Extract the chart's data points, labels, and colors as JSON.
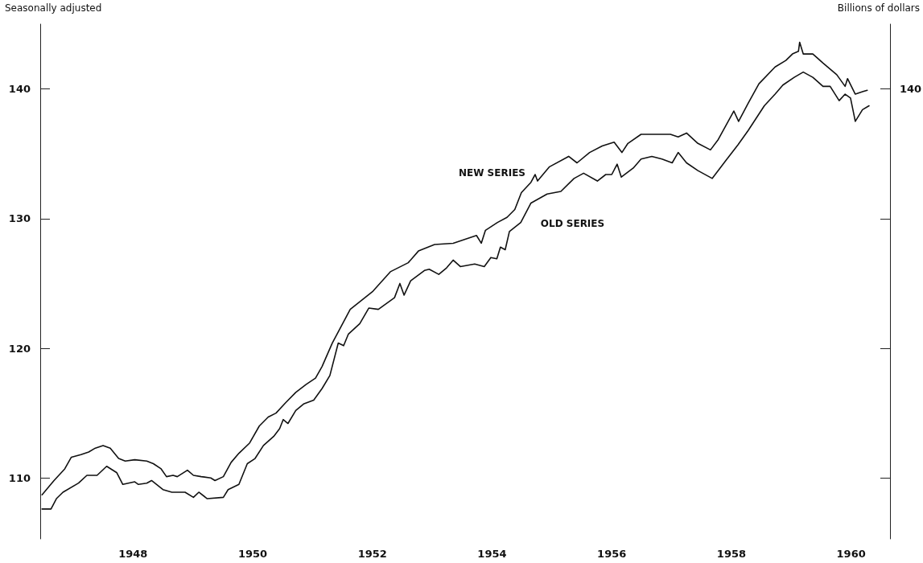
{
  "chart_data": {
    "type": "line",
    "subtitle": "Seasonally adjusted",
    "ylabel": "Billions of dollars",
    "xlim": [
      1946.45,
      1960.65
    ],
    "xticks": [
      1948,
      1950,
      1952,
      1954,
      1956,
      1958,
      1960
    ],
    "ylim": [
      105.3,
      145
    ],
    "yticks": [
      110,
      120,
      130,
      140
    ],
    "grid": false,
    "marker": "none",
    "line_style": "solid",
    "annotations": [
      "140"
    ],
    "series": [
      {
        "name": "NEW SERIES",
        "color": "#111111",
        "x": [
          1946.48,
          1946.68,
          1946.86,
          1946.97,
          1947.13,
          1947.26,
          1947.37,
          1947.5,
          1947.62,
          1947.76,
          1947.87,
          1948.03,
          1948.23,
          1948.34,
          1948.47,
          1948.56,
          1948.67,
          1948.74,
          1948.91,
          1949.01,
          1949.14,
          1949.3,
          1949.37,
          1949.51,
          1949.64,
          1949.77,
          1949.95,
          1950.11,
          1950.26,
          1950.39,
          1950.55,
          1950.72,
          1950.89,
          1951.05,
          1951.16,
          1951.33,
          1951.63,
          1952.01,
          1952.3,
          1952.6,
          1952.77,
          1953.04,
          1953.35,
          1953.74,
          1953.82,
          1953.89,
          1954.09,
          1954.25,
          1954.38,
          1954.49,
          1954.65,
          1954.72,
          1954.76,
          1954.96,
          1955.28,
          1955.42,
          1955.63,
          1955.84,
          1956.04,
          1956.17,
          1956.27,
          1956.49,
          1956.76,
          1956.98,
          1957.11,
          1957.25,
          1957.44,
          1957.65,
          1957.78,
          1958.04,
          1958.12,
          1958.28,
          1958.46,
          1958.73,
          1958.91,
          1959.02,
          1959.12,
          1959.14,
          1959.2,
          1959.36,
          1959.53,
          1959.76,
          1959.9,
          1959.94,
          1960.07,
          1960.2,
          1960.27
        ],
        "values": [
          108.7,
          109.8,
          110.7,
          111.6,
          111.8,
          112.0,
          112.3,
          112.5,
          112.3,
          111.5,
          111.3,
          111.4,
          111.3,
          111.1,
          110.7,
          110.1,
          110.2,
          110.1,
          110.6,
          110.2,
          110.1,
          110.0,
          109.8,
          110.1,
          111.2,
          111.9,
          112.7,
          114.0,
          114.7,
          115.0,
          115.8,
          116.6,
          117.2,
          117.7,
          118.6,
          120.4,
          123.0,
          124.4,
          125.9,
          126.6,
          127.5,
          128.0,
          128.1,
          128.7,
          128.1,
          129.1,
          129.7,
          130.1,
          130.7,
          132.0,
          132.8,
          133.4,
          132.9,
          134.0,
          134.8,
          134.3,
          135.1,
          135.6,
          135.9,
          135.1,
          135.8,
          136.5,
          136.5,
          136.5,
          136.3,
          136.6,
          135.8,
          135.3,
          136.1,
          138.3,
          137.5,
          138.9,
          140.4,
          141.7,
          142.2,
          142.7,
          142.9,
          143.6,
          142.7,
          142.7,
          142.0,
          141.1,
          140.2,
          140.8,
          139.6,
          139.8,
          139.9
        ]
      },
      {
        "name": "OLD SERIES",
        "color": "#111111",
        "x": [
          1946.48,
          1946.63,
          1946.72,
          1946.83,
          1947.09,
          1947.23,
          1947.4,
          1947.56,
          1947.73,
          1947.83,
          1948.03,
          1948.09,
          1948.23,
          1948.31,
          1948.5,
          1948.65,
          1948.87,
          1949.01,
          1949.1,
          1949.24,
          1949.51,
          1949.59,
          1949.77,
          1949.91,
          1950.04,
          1950.18,
          1950.35,
          1950.45,
          1950.51,
          1950.59,
          1950.72,
          1950.85,
          1951.02,
          1951.16,
          1951.29,
          1951.43,
          1951.52,
          1951.6,
          1951.79,
          1951.94,
          1952.1,
          1952.37,
          1952.46,
          1952.53,
          1952.64,
          1952.87,
          1952.95,
          1953.11,
          1953.24,
          1953.35,
          1953.47,
          1953.71,
          1953.87,
          1953.98,
          1954.08,
          1954.14,
          1954.22,
          1954.29,
          1954.48,
          1954.65,
          1954.92,
          1955.15,
          1955.37,
          1955.53,
          1955.76,
          1955.9,
          1956.0,
          1956.09,
          1956.16,
          1956.36,
          1956.49,
          1956.67,
          1956.84,
          1957.01,
          1957.11,
          1957.25,
          1957.44,
          1957.68,
          1957.91,
          1958.11,
          1958.28,
          1958.55,
          1958.73,
          1958.86,
          1959.05,
          1959.2,
          1959.36,
          1959.53,
          1959.65,
          1959.8,
          1959.9,
          1959.99,
          1960.07,
          1960.19,
          1960.3
        ],
        "values": [
          107.6,
          107.6,
          108.4,
          108.9,
          109.6,
          110.2,
          110.2,
          110.9,
          110.4,
          109.5,
          109.7,
          109.5,
          109.6,
          109.8,
          109.1,
          108.9,
          108.9,
          108.5,
          108.9,
          108.4,
          108.5,
          109.1,
          109.5,
          111.1,
          111.5,
          112.5,
          113.2,
          113.8,
          114.5,
          114.2,
          115.2,
          115.7,
          116.0,
          116.9,
          117.9,
          120.4,
          120.2,
          121.1,
          121.9,
          123.1,
          123.0,
          123.9,
          125.0,
          124.1,
          125.2,
          126.0,
          126.1,
          125.7,
          126.2,
          126.8,
          126.3,
          126.5,
          126.3,
          127.0,
          126.9,
          127.8,
          127.6,
          129.0,
          129.7,
          131.2,
          131.9,
          132.1,
          133.1,
          133.5,
          132.9,
          133.4,
          133.4,
          134.2,
          133.2,
          133.9,
          134.6,
          134.8,
          134.6,
          134.3,
          135.1,
          134.3,
          133.7,
          133.1,
          134.5,
          135.7,
          136.8,
          138.7,
          139.6,
          140.3,
          140.9,
          141.3,
          140.9,
          140.2,
          140.2,
          139.1,
          139.6,
          139.3,
          137.5,
          138.4,
          138.7
        ]
      }
    ]
  }
}
